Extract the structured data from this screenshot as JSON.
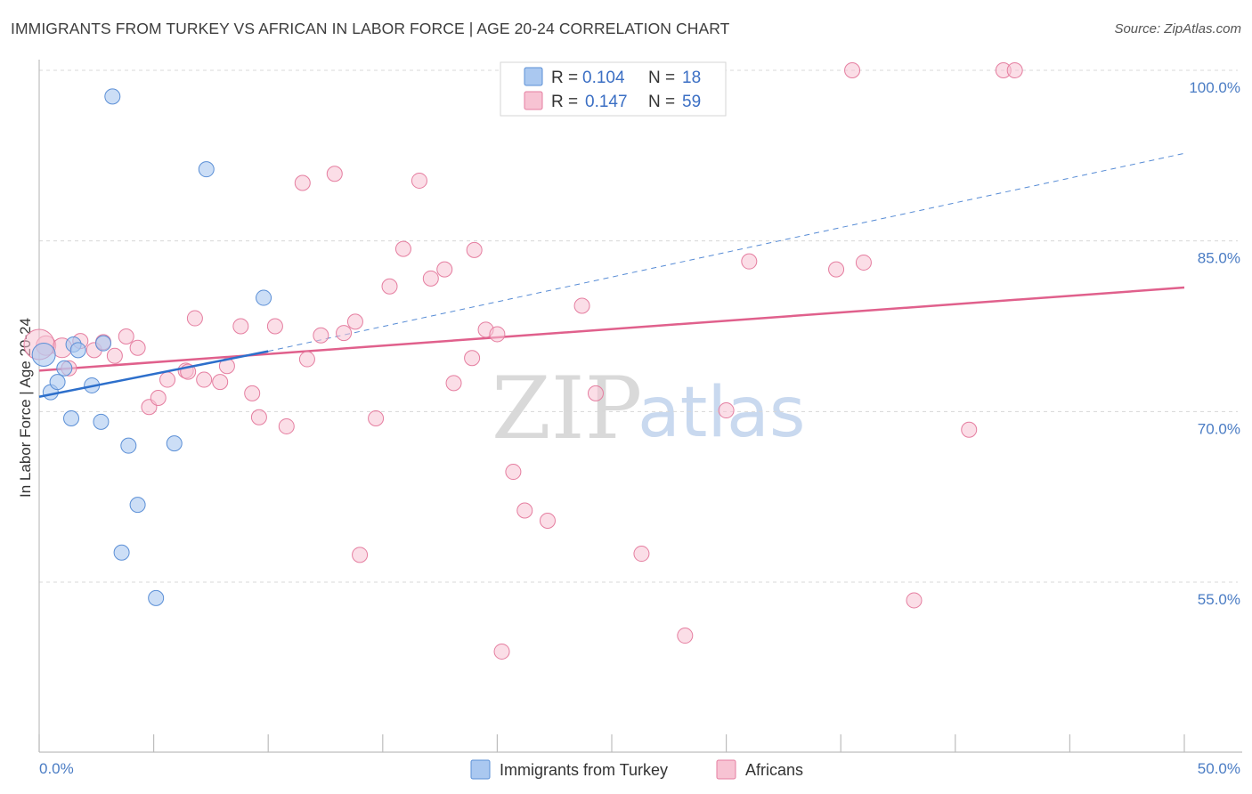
{
  "header": {
    "title": "IMMIGRANTS FROM TURKEY VS AFRICAN IN LABOR FORCE | AGE 20-24 CORRELATION CHART",
    "source": "Source: ZipAtlas.com"
  },
  "watermark": {
    "zip": "ZIP",
    "atlas": "atlas"
  },
  "colors": {
    "turkey_fill": "#aac8f0",
    "turkey_stroke": "#5b8fd6",
    "turkey_line": "#2d6fcb",
    "africans_fill": "#f7c3d3",
    "africans_stroke": "#e57ea0",
    "africans_line": "#e0608c",
    "grid": "#d8d8d8",
    "axis_label": "#4a7cc4"
  },
  "legend": {
    "rows": [
      {
        "r_label": "R = ",
        "r_value": "0.104",
        "n_label": "N = ",
        "n_value": "18"
      },
      {
        "r_label": "R = ",
        "r_value": "0.147",
        "n_label": "N = ",
        "n_value": "59"
      }
    ]
  },
  "chart_data": {
    "type": "scatter",
    "title": "IMMIGRANTS FROM TURKEY VS AFRICAN IN LABOR FORCE | AGE 20-24 CORRELATION CHART",
    "xlabel": "",
    "ylabel": "In Labor Force | Age 20-24",
    "xlim": [
      0,
      50
    ],
    "ylim": [
      40,
      102
    ],
    "x_tick_labels": [
      {
        "value": 0,
        "label": "0.0%"
      },
      {
        "value": 50,
        "label": "50.0%"
      }
    ],
    "x_minor_ticks": [
      0,
      5,
      10,
      15,
      20,
      25,
      30,
      35,
      40,
      45,
      50
    ],
    "y_ticks": [
      {
        "value": 100,
        "label": "100.0%"
      },
      {
        "value": 85,
        "label": "85.0%"
      },
      {
        "value": 70,
        "label": "70.0%"
      },
      {
        "value": 55,
        "label": "55.0%"
      }
    ],
    "grid": true,
    "series": [
      {
        "name": "Immigrants from Turkey",
        "color": "#aac8f0",
        "points": [
          [
            0.2,
            75.0
          ],
          [
            0.5,
            71.7
          ],
          [
            0.8,
            72.6
          ],
          [
            1.1,
            73.8
          ],
          [
            1.4,
            69.4
          ],
          [
            1.5,
            75.9
          ],
          [
            1.7,
            75.4
          ],
          [
            2.3,
            72.3
          ],
          [
            2.7,
            69.1
          ],
          [
            2.8,
            76.0
          ],
          [
            3.9,
            67.0
          ],
          [
            4.3,
            61.8
          ],
          [
            3.6,
            57.6
          ],
          [
            5.1,
            53.6
          ],
          [
            3.2,
            97.7
          ],
          [
            7.3,
            91.3
          ],
          [
            5.9,
            67.2
          ],
          [
            9.8,
            80.0
          ]
        ],
        "trend": {
          "x": [
            0,
            10
          ],
          "y": [
            71.3,
            75.3
          ],
          "dashed_to": [
            50,
            92.7
          ]
        }
      },
      {
        "name": "Africans",
        "color": "#f7c3d3",
        "points": [
          [
            0.3,
            75.8
          ],
          [
            1.3,
            73.8
          ],
          [
            1.8,
            76.2
          ],
          [
            2.4,
            75.4
          ],
          [
            2.8,
            76.1
          ],
          [
            3.3,
            74.9
          ],
          [
            3.8,
            76.6
          ],
          [
            4.3,
            75.6
          ],
          [
            4.8,
            70.4
          ],
          [
            5.2,
            71.2
          ],
          [
            5.6,
            72.8
          ],
          [
            6.4,
            73.6
          ],
          [
            6.8,
            78.2
          ],
          [
            7.2,
            72.8
          ],
          [
            7.9,
            72.6
          ],
          [
            8.2,
            74.0
          ],
          [
            8.8,
            77.5
          ],
          [
            9.3,
            71.6
          ],
          [
            9.6,
            69.5
          ],
          [
            10.3,
            77.5
          ],
          [
            10.8,
            68.7
          ],
          [
            11.5,
            90.1
          ],
          [
            11.7,
            74.6
          ],
          [
            12.3,
            76.7
          ],
          [
            12.9,
            90.9
          ],
          [
            13.3,
            76.9
          ],
          [
            13.8,
            77.9
          ],
          [
            14.0,
            57.4
          ],
          [
            14.7,
            69.4
          ],
          [
            15.3,
            81.0
          ],
          [
            15.9,
            84.3
          ],
          [
            16.6,
            90.3
          ],
          [
            17.1,
            81.7
          ],
          [
            17.7,
            82.5
          ],
          [
            18.1,
            72.5
          ],
          [
            18.9,
            74.7
          ],
          [
            19.0,
            84.2
          ],
          [
            19.5,
            77.2
          ],
          [
            20.0,
            76.8
          ],
          [
            20.2,
            48.9
          ],
          [
            20.7,
            64.7
          ],
          [
            21.2,
            61.3
          ],
          [
            22.2,
            60.4
          ],
          [
            23.7,
            79.3
          ],
          [
            24.3,
            71.6
          ],
          [
            26.3,
            57.5
          ],
          [
            28.2,
            50.3
          ],
          [
            30.0,
            70.1
          ],
          [
            31.0,
            83.2
          ],
          [
            35.5,
            100.0
          ],
          [
            34.8,
            82.5
          ],
          [
            36.0,
            83.1
          ],
          [
            38.2,
            53.4
          ],
          [
            40.6,
            68.4
          ],
          [
            42.1,
            100.0
          ],
          [
            42.6,
            100.0
          ],
          [
            1.0,
            75.6
          ],
          [
            0.0,
            75.9
          ],
          [
            6.5,
            73.5
          ]
        ],
        "trend": {
          "x": [
            0,
            50
          ],
          "y": [
            73.6,
            80.9
          ]
        }
      }
    ]
  },
  "bottom_legend": {
    "items": [
      {
        "label": "Immigrants from Turkey"
      },
      {
        "label": "Africans"
      }
    ]
  }
}
